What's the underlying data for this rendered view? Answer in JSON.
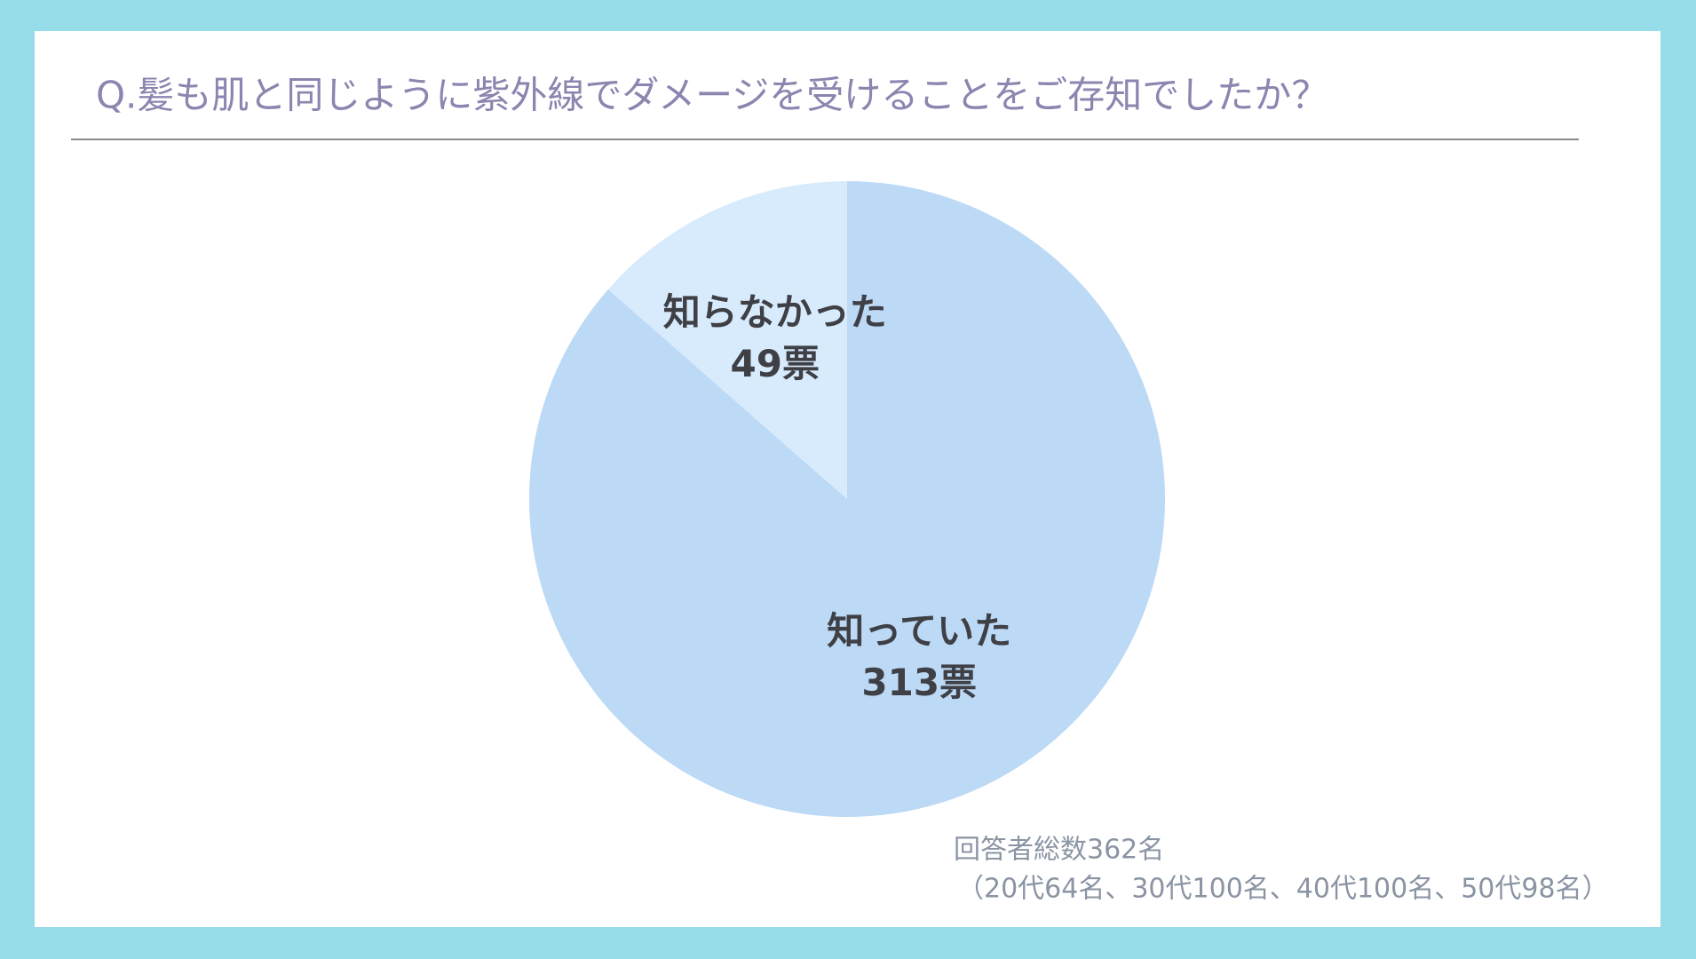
{
  "chart_data": {
    "type": "pie",
    "title": "Q.髪も肌と同じように紫外線でダメージを受けることをご存知でしたか？",
    "categories": [
      "知っていた",
      "知らなかった"
    ],
    "values": [
      313,
      49
    ],
    "value_labels": [
      "313票",
      "49票"
    ],
    "colors": [
      "#bcd9f5",
      "#d8ebfc"
    ],
    "notes": [
      "回答者総数362名",
      "（20代64名、30代100名、40代100名、50代98名）"
    ]
  }
}
